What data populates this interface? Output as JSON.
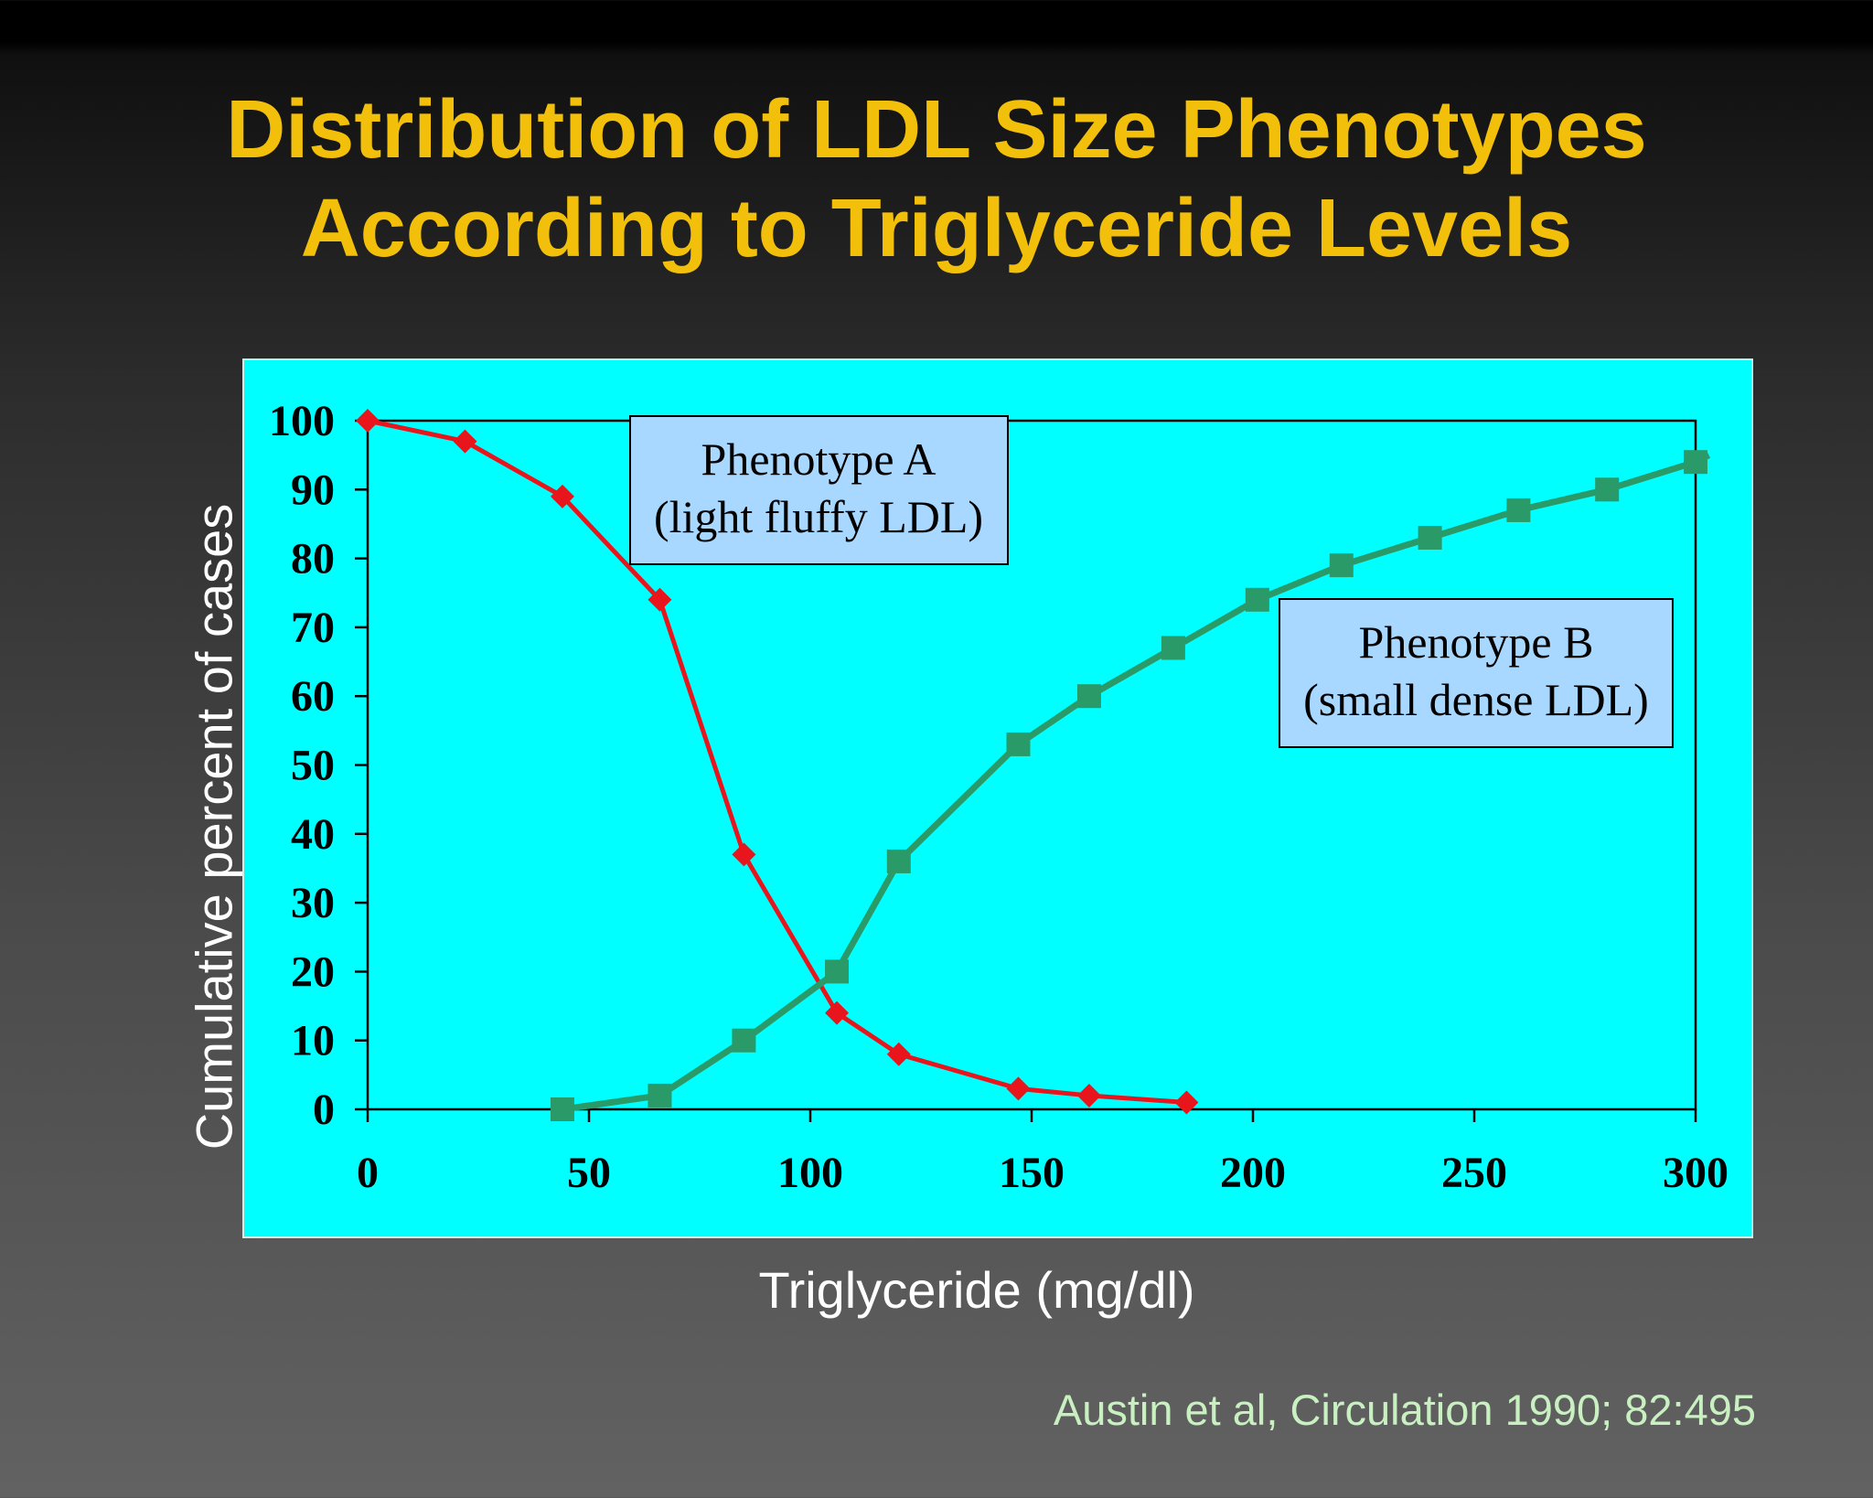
{
  "slide": {
    "title_line1": "Distribution of LDL Size Phenotypes",
    "title_line2": "According to Triglyceride Levels",
    "citation": "Austin et al, Circulation 1990; 82:495"
  },
  "chart_data": {
    "type": "line",
    "xlabel": "Triglyceride (mg/dl)",
    "ylabel": "Cumulative percent of cases",
    "xlim": [
      0,
      300
    ],
    "ylim": [
      0,
      100
    ],
    "x_ticks": [
      0,
      50,
      100,
      150,
      200,
      250,
      300
    ],
    "y_ticks": [
      0,
      10,
      20,
      30,
      40,
      50,
      60,
      70,
      80,
      90,
      100
    ],
    "grid": false,
    "background_color": "#00ffff",
    "series": [
      {
        "name_line1": "Phenotype A",
        "name_line2": "(light fluffy LDL)",
        "color": "#e8161c",
        "marker": "diamond",
        "points": [
          [
            0,
            100
          ],
          [
            22,
            97
          ],
          [
            44,
            89
          ],
          [
            66,
            74
          ],
          [
            85,
            37
          ],
          [
            106,
            14
          ],
          [
            120,
            8
          ],
          [
            147,
            3
          ],
          [
            163,
            2
          ],
          [
            185,
            1
          ]
        ]
      },
      {
        "name_line1": "Phenotype B",
        "name_line2": "(small dense LDL)",
        "color": "#2a9a68",
        "marker": "square",
        "points": [
          [
            44,
            0
          ],
          [
            66,
            2
          ],
          [
            85,
            10
          ],
          [
            106,
            20
          ],
          [
            120,
            36
          ],
          [
            147,
            53
          ],
          [
            163,
            60
          ],
          [
            182,
            67
          ],
          [
            201,
            74
          ],
          [
            220,
            79
          ],
          [
            240,
            83
          ],
          [
            260,
            87
          ],
          [
            280,
            90
          ],
          [
            300,
            94
          ],
          [
            303,
            95
          ]
        ]
      }
    ]
  }
}
